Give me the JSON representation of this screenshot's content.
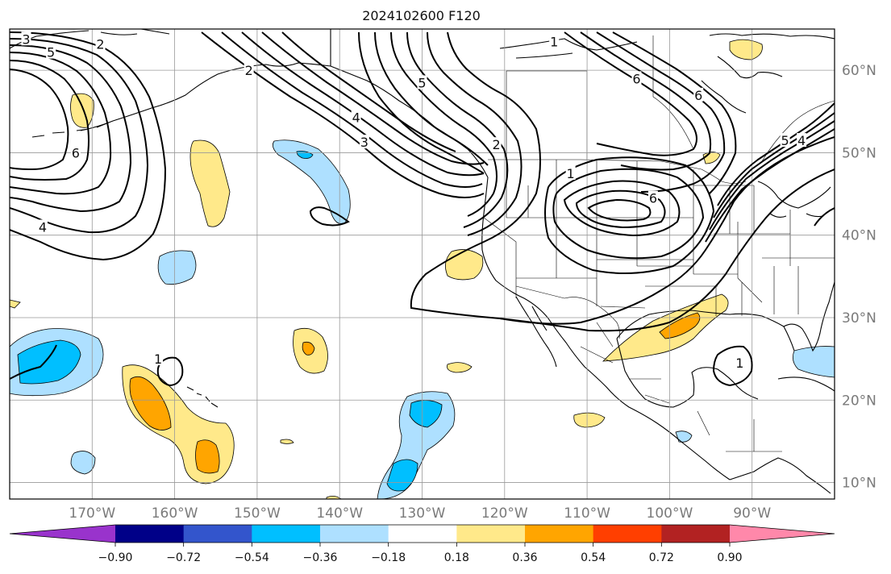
{
  "title": "2024102600 F120",
  "map": {
    "lon_range": [
      -180,
      -80
    ],
    "lat_range": [
      8,
      65
    ],
    "grid": true,
    "lon_ticks": [
      {
        "lon": -170,
        "label": "170°W"
      },
      {
        "lon": -160,
        "label": "160°W"
      },
      {
        "lon": -150,
        "label": "150°W"
      },
      {
        "lon": -140,
        "label": "140°W"
      },
      {
        "lon": -130,
        "label": "130°W"
      },
      {
        "lon": -120,
        "label": "120°W"
      },
      {
        "lon": -110,
        "label": "110°W"
      },
      {
        "lon": -100,
        "label": "100°W"
      },
      {
        "lon": -90,
        "label": "90°W"
      }
    ],
    "lat_ticks": [
      {
        "lat": 60,
        "label": "60°N"
      },
      {
        "lat": 50,
        "label": "50°N"
      },
      {
        "lat": 40,
        "label": "40°N"
      },
      {
        "lat": 30,
        "label": "30°N"
      },
      {
        "lat": 20,
        "label": "20°N"
      },
      {
        "lat": 10,
        "label": "10°N"
      }
    ],
    "colors": {
      "neg_090": "#9933cc",
      "neg_072": "#000088",
      "neg_054": "#3355cc",
      "neg_036": "#00bfff",
      "neg_018": "#aee0ff",
      "zero": "#ffffff",
      "pos_018": "#ffe98a",
      "pos_036": "#ffa500",
      "pos_054": "#ff3f00",
      "pos_072": "#b22222",
      "pos_090": "#ff88aa"
    }
  },
  "colorbar": {
    "ticks": [
      "−0.90",
      "−0.72",
      "−0.54",
      "−0.36",
      "−0.18",
      "0.18",
      "0.36",
      "0.54",
      "0.72",
      "0.90"
    ],
    "colors": [
      "#9933cc",
      "#000088",
      "#3355cc",
      "#00bfff",
      "#aee0ff",
      "#ffffff",
      "#ffe98a",
      "#ffa500",
      "#ff3f00",
      "#b22222",
      "#ff88aa"
    ],
    "extend": "both"
  },
  "contour_labels": [
    {
      "text": "3",
      "lon": -178,
      "lat": 63.8
    },
    {
      "text": "5",
      "lon": -175,
      "lat": 62.2
    },
    {
      "text": "2",
      "lon": -169,
      "lat": 63.2
    },
    {
      "text": "6",
      "lon": -172,
      "lat": 50.0
    },
    {
      "text": "4",
      "lon": -176,
      "lat": 41.0
    },
    {
      "text": "2",
      "lon": -151,
      "lat": 60.0
    },
    {
      "text": "4",
      "lon": -138,
      "lat": 54.3
    },
    {
      "text": "3",
      "lon": -137,
      "lat": 51.3
    },
    {
      "text": "5",
      "lon": -130,
      "lat": 58.5
    },
    {
      "text": "2",
      "lon": -121,
      "lat": 51.0
    },
    {
      "text": "1",
      "lon": -112,
      "lat": 47.5
    },
    {
      "text": "6",
      "lon": -102,
      "lat": 44.5
    },
    {
      "text": "1",
      "lon": -114,
      "lat": 63.5
    },
    {
      "text": "6",
      "lon": -104,
      "lat": 59.0
    },
    {
      "text": "6",
      "lon": -96.5,
      "lat": 57.0
    },
    {
      "text": "5",
      "lon": -86,
      "lat": 51.5
    },
    {
      "text": "4",
      "lon": -84,
      "lat": 51.5
    },
    {
      "text": "1",
      "lon": -162,
      "lat": 25.0
    },
    {
      "text": "1",
      "lon": -91.5,
      "lat": 24.5
    }
  ]
}
